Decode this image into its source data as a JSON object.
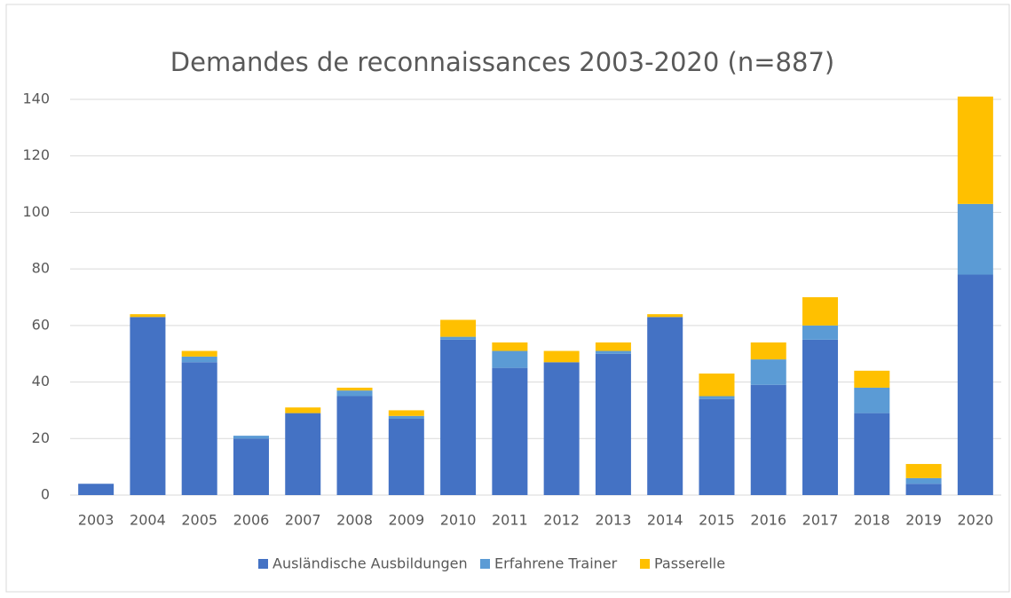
{
  "chart_data": {
    "type": "stacked-bar",
    "title": "Demandes de reconnaissances 2003-2020 (n=887)",
    "categories": [
      "2003",
      "2004",
      "2005",
      "2006",
      "2007",
      "2008",
      "2009",
      "2010",
      "2011",
      "2012",
      "2013",
      "2014",
      "2015",
      "2016",
      "2017",
      "2018",
      "2019",
      "2020"
    ],
    "series": [
      {
        "name": "Ausländische Ausbildungen",
        "color": "#4472c4",
        "values": [
          4,
          63,
          47,
          20,
          29,
          35,
          27,
          55,
          45,
          47,
          50,
          63,
          34,
          39,
          55,
          29,
          4,
          78
        ]
      },
      {
        "name": "Erfahrene Trainer",
        "color": "#5b9bd5",
        "values": [
          0,
          0,
          2,
          1,
          0,
          2,
          1,
          1,
          6,
          0,
          1,
          0,
          1,
          9,
          5,
          9,
          2,
          25
        ]
      },
      {
        "name": "Passerelle",
        "color": "#ffc000",
        "values": [
          0,
          1,
          2,
          0,
          2,
          1,
          2,
          6,
          3,
          4,
          3,
          1,
          8,
          6,
          10,
          6,
          5,
          38
        ]
      }
    ],
    "ylim": [
      0,
      140
    ],
    "yticks": [
      0,
      20,
      40,
      60,
      80,
      100,
      120,
      140
    ],
    "grid": true,
    "legend": "bottom"
  }
}
